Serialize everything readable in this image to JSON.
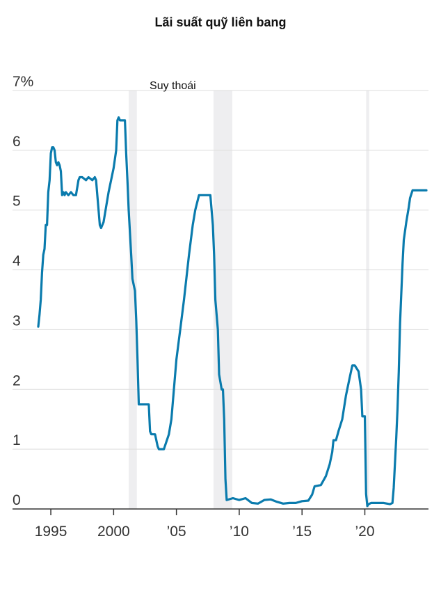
{
  "chart_data": {
    "type": "line",
    "title": "Lãi suất quỹ liên bang",
    "ylim": [
      0,
      7
    ],
    "xlim": [
      1993.0,
      2024.9
    ],
    "yticks": [
      {
        "value": 0,
        "label": "0"
      },
      {
        "value": 1,
        "label": "1"
      },
      {
        "value": 2,
        "label": "2"
      },
      {
        "value": 3,
        "label": "3"
      },
      {
        "value": 4,
        "label": "4"
      },
      {
        "value": 5,
        "label": "5"
      },
      {
        "value": 6,
        "label": "6"
      },
      {
        "value": 7,
        "label": "7%"
      }
    ],
    "xticks": [
      {
        "value": 1995,
        "label": "1995"
      },
      {
        "value": 2000,
        "label": "2000"
      },
      {
        "value": 2005,
        "label": "’05"
      },
      {
        "value": 2010,
        "label": "’10"
      },
      {
        "value": 2015,
        "label": "’15"
      },
      {
        "value": 2020,
        "label": "’20"
      }
    ],
    "grid": true,
    "colors": {
      "line": "#0a7bad",
      "recession": "#eeeef0",
      "grid": "#dddddd",
      "axis": "#333333"
    },
    "recessions": [
      {
        "start": 2001.2,
        "end": 2001.85,
        "label": "Suy thoái"
      },
      {
        "start": 2007.95,
        "end": 2009.45
      },
      {
        "start": 2020.1,
        "end": 2020.35
      }
    ],
    "series": [
      {
        "x": [
          1994.0,
          1994.1,
          1994.2,
          1994.3,
          1994.4,
          1994.5,
          1994.6,
          1994.7,
          1994.8,
          1994.9,
          1995.0,
          1995.1,
          1995.2,
          1995.3,
          1995.4,
          1995.5,
          1995.6,
          1995.7,
          1995.8,
          1995.9,
          1996.0,
          1996.1,
          1996.2,
          1996.4,
          1996.6,
          1996.8,
          1997.0,
          1997.2,
          1997.3,
          1997.5,
          1997.8,
          1998.0,
          1998.3,
          1998.5,
          1998.6,
          1998.8,
          1998.9,
          1999.0,
          1999.2,
          1999.4,
          1999.6,
          1999.8,
          2000.0,
          2000.2,
          2000.3,
          2000.4,
          2000.5,
          2000.7,
          2000.9,
          2001.0,
          2001.1,
          2001.2,
          2001.4,
          2001.5,
          2001.7,
          2001.8,
          2001.9,
          2002.0,
          2002.2,
          2002.5,
          2002.8,
          2002.9,
          2003.0,
          2003.3,
          2003.5,
          2003.6,
          2004.0,
          2004.4,
          2004.6,
          2004.8,
          2005.0,
          2005.3,
          2005.6,
          2006.0,
          2006.3,
          2006.5,
          2006.8,
          2007.0,
          2007.5,
          2007.7,
          2007.8,
          2007.9,
          2008.0,
          2008.1,
          2008.3,
          2008.4,
          2008.6,
          2008.7,
          2008.8,
          2008.9,
          2009.0,
          2009.5,
          2010.0,
          2010.5,
          2011.0,
          2011.5,
          2012.0,
          2012.5,
          2013.0,
          2013.5,
          2014.0,
          2014.5,
          2015.0,
          2015.5,
          2015.8,
          2016.0,
          2016.5,
          2016.9,
          2017.2,
          2017.4,
          2017.5,
          2017.7,
          2017.9,
          2018.2,
          2018.5,
          2018.8,
          2019.0,
          2019.2,
          2019.5,
          2019.7,
          2019.8,
          2020.0,
          2020.1,
          2020.2,
          2020.3,
          2020.5,
          2021.0,
          2021.5,
          2022.0,
          2022.2,
          2022.3,
          2022.5,
          2022.6,
          2022.7,
          2022.8,
          2023.0,
          2023.1,
          2023.3,
          2023.5,
          2023.6,
          2023.8,
          2024.0,
          2024.5,
          2024.9
        ],
        "y": [
          3.05,
          3.25,
          3.5,
          3.95,
          4.25,
          4.35,
          4.75,
          4.75,
          5.3,
          5.5,
          5.95,
          6.05,
          6.05,
          6.0,
          5.8,
          5.75,
          5.8,
          5.75,
          5.65,
          5.25,
          5.3,
          5.25,
          5.3,
          5.25,
          5.3,
          5.25,
          5.25,
          5.5,
          5.55,
          5.55,
          5.5,
          5.55,
          5.5,
          5.55,
          5.5,
          5.0,
          4.75,
          4.7,
          4.8,
          5.05,
          5.3,
          5.5,
          5.7,
          6.0,
          6.5,
          6.55,
          6.5,
          6.5,
          6.5,
          5.95,
          5.5,
          5.0,
          4.25,
          3.85,
          3.65,
          3.15,
          2.5,
          1.75,
          1.75,
          1.75,
          1.75,
          1.3,
          1.25,
          1.25,
          1.05,
          1.0,
          1.0,
          1.25,
          1.5,
          2.0,
          2.5,
          3.0,
          3.5,
          4.25,
          4.75,
          5.0,
          5.25,
          5.25,
          5.25,
          5.25,
          5.0,
          4.75,
          4.25,
          3.5,
          3.0,
          2.25,
          2.0,
          2.0,
          1.5,
          0.5,
          0.15,
          0.18,
          0.15,
          0.18,
          0.1,
          0.09,
          0.15,
          0.16,
          0.12,
          0.09,
          0.1,
          0.1,
          0.13,
          0.14,
          0.24,
          0.38,
          0.4,
          0.55,
          0.75,
          0.95,
          1.15,
          1.15,
          1.3,
          1.5,
          1.9,
          2.2,
          2.4,
          2.4,
          2.3,
          2.0,
          1.55,
          1.55,
          0.25,
          0.05,
          0.08,
          0.1,
          0.1,
          0.1,
          0.08,
          0.1,
          0.35,
          1.2,
          1.68,
          2.3,
          3.1,
          4.1,
          4.5,
          4.8,
          5.05,
          5.2,
          5.33,
          5.33,
          5.33,
          5.33
        ]
      }
    ]
  }
}
